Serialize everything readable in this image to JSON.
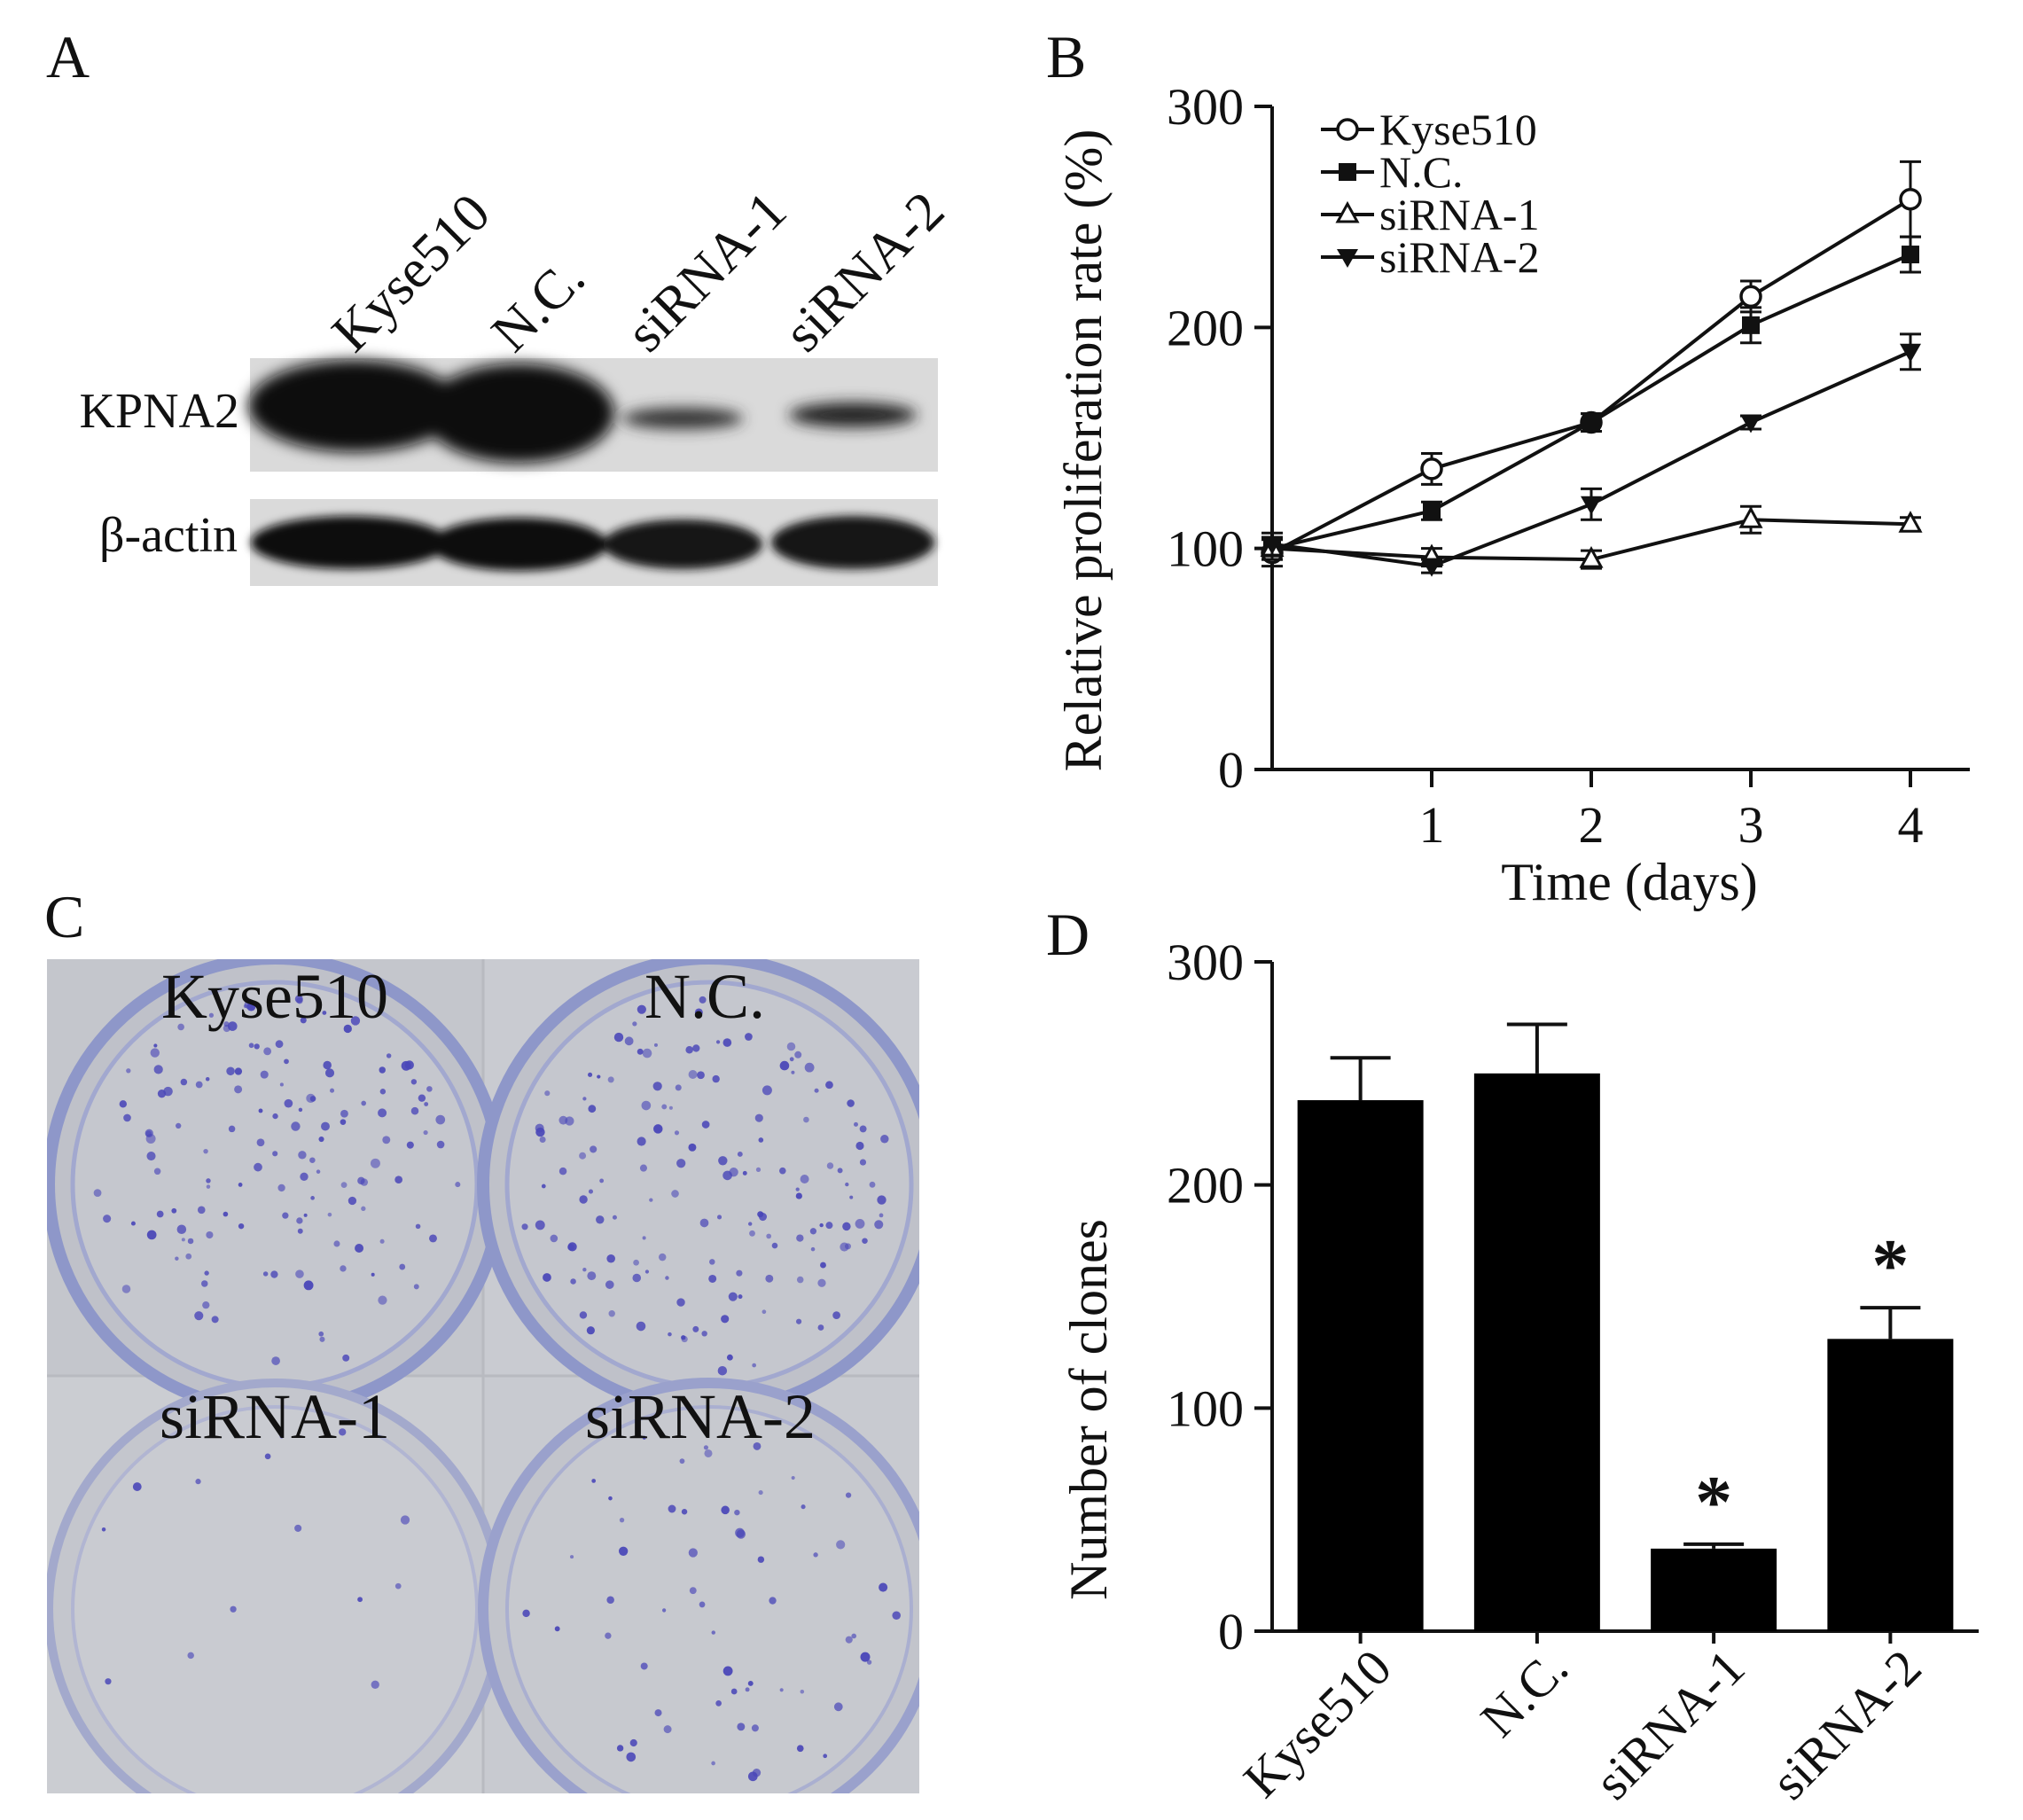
{
  "panels": {
    "a": {
      "letter": "A"
    },
    "b": {
      "letter": "B"
    },
    "c": {
      "letter": "C"
    },
    "d": {
      "letter": "D"
    }
  },
  "blot": {
    "lanes": [
      "Kyse510",
      "N.C.",
      "siRNA-1",
      "siRNA-2"
    ],
    "rows": [
      "KPNA2",
      "β-actin"
    ]
  },
  "plates": {
    "labels": [
      "Kyse510",
      "N.C.",
      "siRNA-1",
      "siRNA-2"
    ],
    "stain_color": "#4a47b8"
  },
  "chart_data": [
    {
      "type": "line",
      "xlabel": "Time (days)",
      "ylabel": "Relative proliferation rate (%)",
      "xlim": [
        0,
        4
      ],
      "ylim": [
        0,
        300
      ],
      "xticks": [
        "1",
        "2",
        "3",
        "4"
      ],
      "yticks": [
        "0",
        "100",
        "200",
        "300"
      ],
      "legend_position": "top-left",
      "x": [
        0,
        1,
        2,
        3,
        4
      ],
      "series": [
        {
          "name": "Kyse510",
          "marker": "open-circle",
          "values": [
            98,
            136,
            157,
            214,
            258
          ],
          "errors": [
            6,
            7,
            4,
            7,
            17
          ]
        },
        {
          "name": "N.C.",
          "marker": "filled-square",
          "values": [
            100,
            117,
            157,
            201,
            233
          ],
          "errors": [
            5,
            4,
            4,
            8,
            8
          ]
        },
        {
          "name": "siRNA-1",
          "marker": "open-triangle-up",
          "values": [
            100,
            96,
            95,
            113,
            111
          ],
          "errors": [
            5,
            4,
            4,
            6,
            3
          ]
        },
        {
          "name": "siRNA-2",
          "marker": "filled-triangle-down",
          "values": [
            102,
            92,
            120,
            157,
            189
          ],
          "errors": [
            5,
            3,
            7,
            3,
            8
          ]
        }
      ]
    },
    {
      "type": "bar",
      "ylabel": "Number of clones",
      "ylim": [
        0,
        300
      ],
      "yticks": [
        "0",
        "100",
        "200",
        "300"
      ],
      "categories": [
        "Kyse510",
        "N.C.",
        "siRNA-1",
        "siRNA-2"
      ],
      "values": [
        238,
        250,
        37,
        131
      ],
      "errors": [
        19,
        22,
        2,
        14
      ],
      "significance": [
        "",
        "",
        "*",
        "*"
      ],
      "bar_color": "#000000"
    }
  ]
}
